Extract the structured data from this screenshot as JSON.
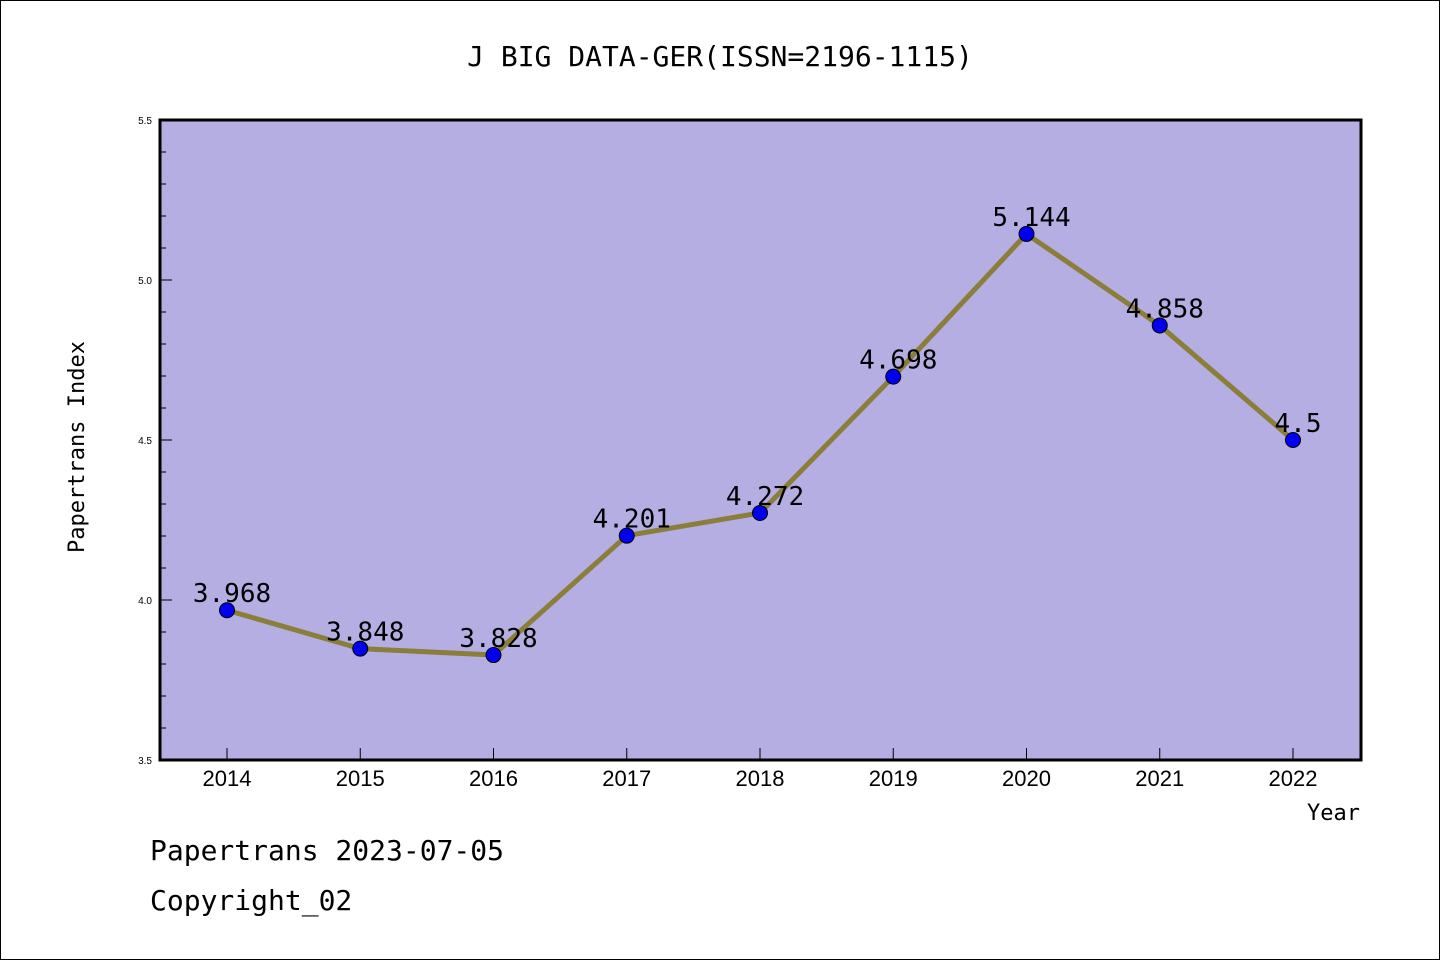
{
  "chart_data": {
    "type": "line",
    "title": "J BIG DATA-GER(ISSN=2196-1115)",
    "xlabel": "Year",
    "ylabel": "Papertrans Index",
    "categories": [
      "2014",
      "2015",
      "2016",
      "2017",
      "2018",
      "2019",
      "2020",
      "2021",
      "2022"
    ],
    "series": [
      {
        "values": [
          3.968,
          3.848,
          3.828,
          4.201,
          4.272,
          4.698,
          5.144,
          4.858,
          4.5
        ]
      }
    ],
    "data_labels": [
      "3.968",
      "3.848",
      "3.828",
      "4.201",
      "4.272",
      "4.698",
      "5.144",
      "4.858",
      "4.5"
    ],
    "ylim": [
      3.5,
      5.5
    ],
    "y_ticks": [
      "3.5",
      "4.0",
      "4.5",
      "5.0",
      "5.5"
    ],
    "grid": false,
    "colors": {
      "plot_background": "#b4aee3",
      "line": "#8b7d3a",
      "marker": "#0000ee"
    }
  },
  "footer": {
    "line1": "Papertrans 2023-07-05",
    "line2": "Copyright_02"
  }
}
